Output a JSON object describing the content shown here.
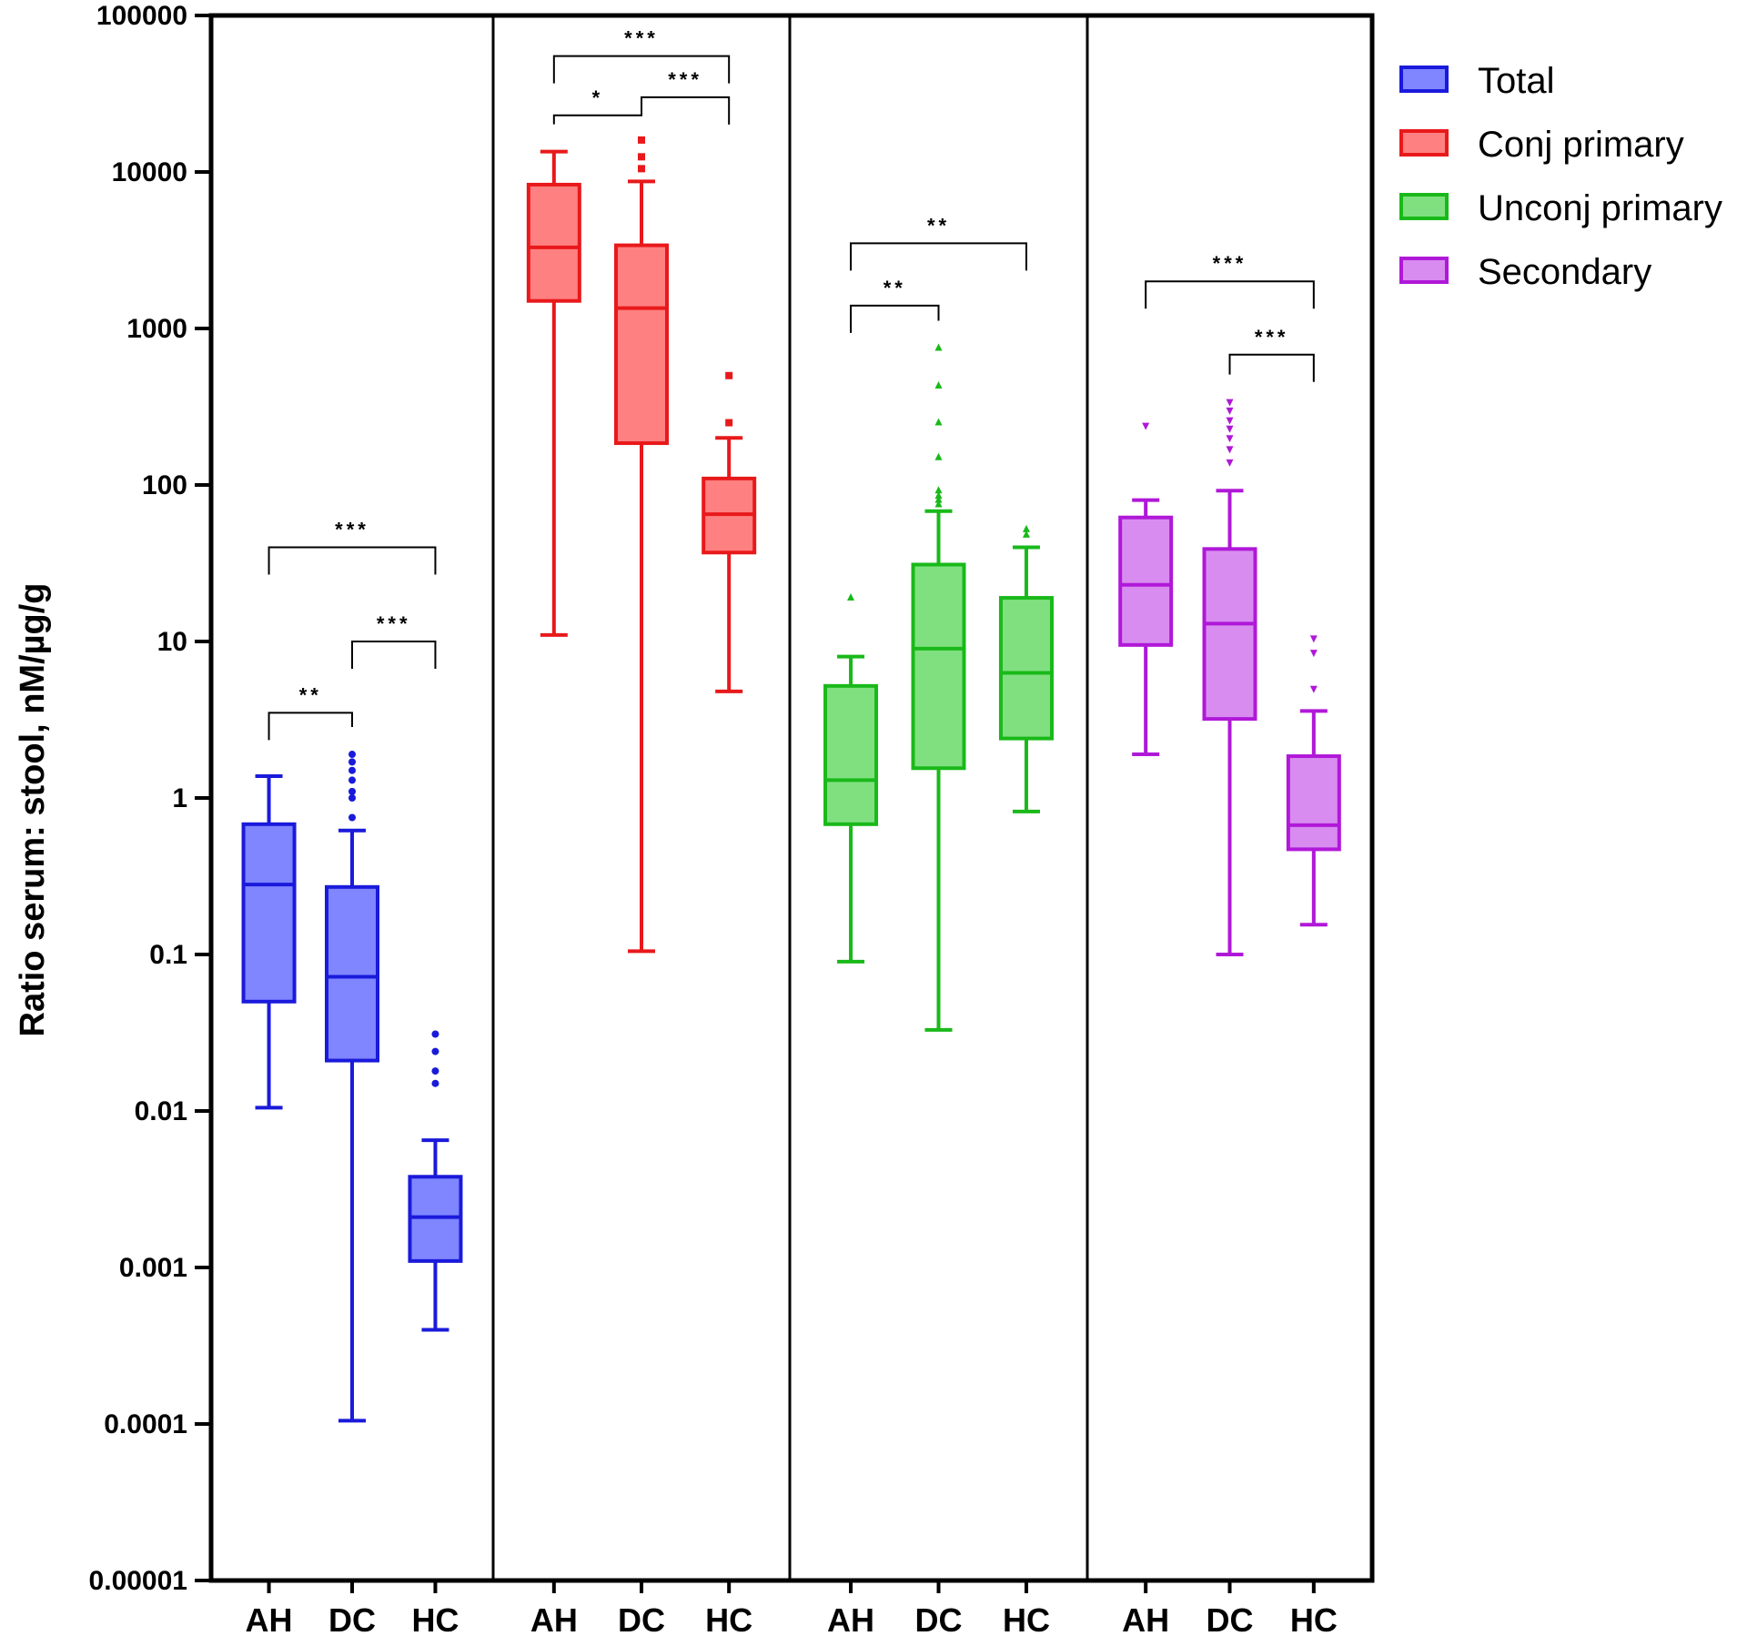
{
  "chart_data": {
    "type": "boxplot",
    "title": "",
    "xlabel": "",
    "ylabel": "Ratio serum: stool, nM/µg/g",
    "yscale": "log",
    "ylim": [
      1e-05,
      100000
    ],
    "y_ticks": [
      {
        "value": 1e-05,
        "label": "0.00001"
      },
      {
        "value": 0.0001,
        "label": "0.0001"
      },
      {
        "value": 0.001,
        "label": "0.001"
      },
      {
        "value": 0.01,
        "label": "0.01"
      },
      {
        "value": 0.1,
        "label": "0.1"
      },
      {
        "value": 1,
        "label": "1"
      },
      {
        "value": 10,
        "label": "10"
      },
      {
        "value": 100,
        "label": "100"
      },
      {
        "value": 1000,
        "label": "1000"
      },
      {
        "value": 10000,
        "label": "10000"
      },
      {
        "value": 100000,
        "label": "100000"
      }
    ],
    "categories": [
      "AH",
      "DC",
      "HC"
    ],
    "legend": {
      "position": "right",
      "entries": [
        "Total",
        "Conj primary",
        "Unconj primary",
        "Secondary"
      ]
    },
    "panels": [
      {
        "name": "Total",
        "color": "#1a1adb",
        "fill": "#7f86ff",
        "marker": "circle",
        "groups": [
          {
            "category": "AH",
            "whisker_low": 0.0105,
            "q1": 0.05,
            "median": 0.28,
            "q3": 0.68,
            "whisker_high": 1.38,
            "outliers": []
          },
          {
            "category": "DC",
            "whisker_low": 0.000105,
            "q1": 0.021,
            "median": 0.072,
            "q3": 0.27,
            "whisker_high": 0.62,
            "outliers": [
              0.75,
              1.0,
              1.1,
              1.3,
              1.5,
              1.7,
              1.9
            ]
          },
          {
            "category": "HC",
            "whisker_low": 0.0004,
            "q1": 0.0011,
            "median": 0.0021,
            "q3": 0.0038,
            "whisker_high": 0.0065,
            "outliers": [
              0.015,
              0.018,
              0.024,
              0.031
            ]
          }
        ],
        "comparisons": [
          {
            "from": "AH",
            "to": "HC",
            "label": "***",
            "y": 40
          },
          {
            "from": "DC",
            "to": "HC",
            "label": "***",
            "y": 10
          },
          {
            "from": "AH",
            "to": "DC",
            "label": "**",
            "y": 3.5
          }
        ]
      },
      {
        "name": "Conj primary",
        "color": "#e8191b",
        "fill": "#ff8080",
        "marker": "square",
        "groups": [
          {
            "category": "AH",
            "whisker_low": 11,
            "q1": 1500,
            "median": 3300,
            "q3": 8300,
            "whisker_high": 13500,
            "outliers": []
          },
          {
            "category": "DC",
            "whisker_low": 0.105,
            "q1": 185,
            "median": 1350,
            "q3": 3400,
            "whisker_high": 8700,
            "outliers": [
              10500,
              12500,
              16000
            ]
          },
          {
            "category": "HC",
            "whisker_low": 4.8,
            "q1": 37,
            "median": 65,
            "q3": 110,
            "whisker_high": 200,
            "outliers": [
              250,
              500
            ]
          }
        ],
        "comparisons": [
          {
            "from": "AH",
            "to": "HC",
            "label": "***",
            "y": 55000
          },
          {
            "from": "DC",
            "to": "HC",
            "label": "***",
            "y": 30000
          },
          {
            "from": "AH",
            "to": "DC",
            "label": "*",
            "y": 23000
          }
        ]
      },
      {
        "name": "Unconj primary",
        "color": "#19b919",
        "fill": "#80e080",
        "marker": "triangle",
        "groups": [
          {
            "category": "AH",
            "whisker_low": 0.09,
            "q1": 0.68,
            "median": 1.3,
            "q3": 5.2,
            "whisker_high": 8,
            "outliers": [
              19
            ]
          },
          {
            "category": "DC",
            "whisker_low": 0.033,
            "q1": 1.55,
            "median": 9,
            "q3": 31,
            "whisker_high": 68,
            "outliers": [
              75,
              80,
              85,
              92,
              150,
              250,
              430,
              750
            ]
          },
          {
            "category": "HC",
            "whisker_low": 0.82,
            "q1": 2.4,
            "median": 6.3,
            "q3": 19,
            "whisker_high": 40,
            "outliers": [
              48,
              52
            ]
          }
        ],
        "comparisons": [
          {
            "from": "AH",
            "to": "HC",
            "label": "**",
            "y": 3500
          },
          {
            "from": "AH",
            "to": "DC",
            "label": "**",
            "y": 1400
          }
        ]
      },
      {
        "name": "Secondary",
        "color": "#b018d8",
        "fill": "#d88cf0",
        "marker": "triangle-down",
        "groups": [
          {
            "category": "AH",
            "whisker_low": 1.9,
            "q1": 9.5,
            "median": 23,
            "q3": 62,
            "whisker_high": 80,
            "outliers": [
              240
            ]
          },
          {
            "category": "DC",
            "whisker_low": 0.1,
            "q1": 3.2,
            "median": 13,
            "q3": 39,
            "whisker_high": 92,
            "outliers": [
              140,
              170,
              200,
              230,
              260,
              300,
              340
            ]
          },
          {
            "category": "HC",
            "whisker_low": 0.155,
            "q1": 0.47,
            "median": 0.67,
            "q3": 1.85,
            "whisker_high": 3.6,
            "outliers": [
              5,
              8.5,
              10.5
            ]
          }
        ],
        "comparisons": [
          {
            "from": "AH",
            "to": "HC",
            "label": "***",
            "y": 2000
          },
          {
            "from": "DC",
            "to": "HC",
            "label": "***",
            "y": 680
          }
        ]
      }
    ]
  }
}
